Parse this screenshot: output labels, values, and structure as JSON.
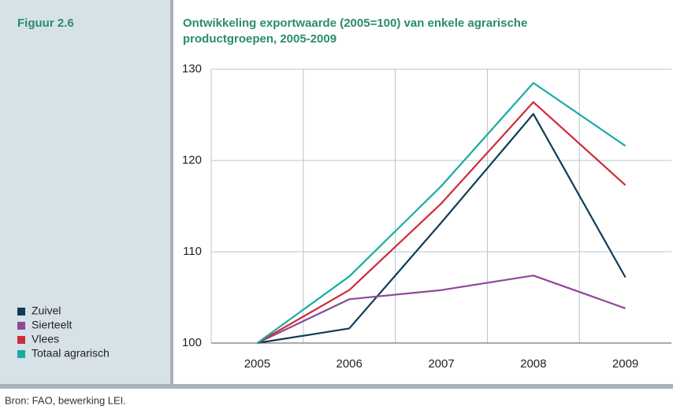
{
  "chart_data": {
    "type": "line",
    "figure_label": "Figuur 2.6",
    "title": [
      "Ontwikkeling exportwaarde (2005=100) van enkele agrarische",
      "productgroepen, 2005-2009"
    ],
    "source": "Bron: FAO, bewerking LEI.",
    "categories": [
      "2005",
      "2006",
      "2007",
      "2008",
      "2009"
    ],
    "series": [
      {
        "name": "Zuivel",
        "color": "#0f3d57",
        "values": [
          100,
          101.6,
          113.2,
          125.1,
          107.2
        ]
      },
      {
        "name": "Sierteelt",
        "color": "#8e4a96",
        "values": [
          100,
          104.8,
          105.8,
          107.4,
          103.8
        ]
      },
      {
        "name": "Vlees",
        "color": "#d02b3a",
        "values": [
          100,
          105.8,
          115.3,
          126.4,
          117.3
        ]
      },
      {
        "name": "Totaal agrarisch",
        "color": "#1aaba3",
        "values": [
          100,
          107.3,
          117.2,
          128.5,
          121.6
        ]
      }
    ],
    "ylim": [
      100,
      130
    ],
    "yticks": [
      100,
      110,
      120,
      130
    ],
    "grid": true
  }
}
